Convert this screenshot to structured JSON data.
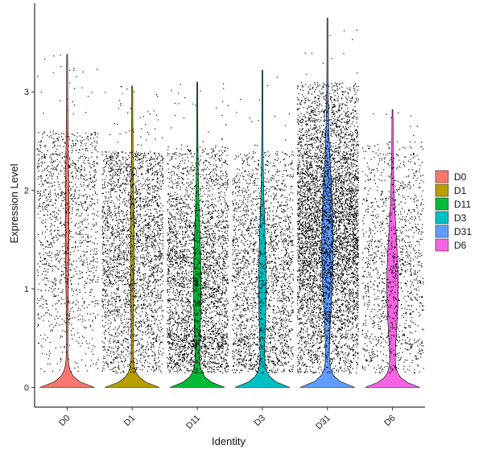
{
  "chart_data": {
    "type": "violin",
    "title": "",
    "xlabel": "Identity",
    "ylabel": "Expression Level",
    "ylim": [
      -0.2,
      3.9
    ],
    "yticks": [
      0,
      1,
      2,
      3
    ],
    "grid": false,
    "legend_position": "right",
    "categories": [
      "D0",
      "D1",
      "D11",
      "D3",
      "D31",
      "D6"
    ],
    "series": [
      {
        "name": "D0",
        "color": "#F8766D",
        "max": 3.38,
        "n_points": 1300,
        "points_upper_bound": 2.6,
        "points_center": 1.7
      },
      {
        "name": "D1",
        "color": "#B79F00",
        "max": 3.06,
        "n_points": 2600,
        "points_upper_bound": 2.4,
        "points_center": 1.4
      },
      {
        "name": "D11",
        "color": "#00BA38",
        "max": 3.1,
        "n_points": 3200,
        "points_upper_bound": 2.45,
        "points_center": 1.1
      },
      {
        "name": "D3",
        "color": "#00BFC4",
        "max": 3.22,
        "n_points": 2200,
        "points_upper_bound": 2.4,
        "points_center": 1.1
      },
      {
        "name": "D31",
        "color": "#619CFF",
        "max": 3.75,
        "n_points": 5600,
        "points_upper_bound": 3.1,
        "points_center": 1.6
      },
      {
        "name": "D6",
        "color": "#F564E3",
        "max": 2.82,
        "n_points": 1300,
        "points_upper_bound": 2.5,
        "points_center": 1.2
      }
    ]
  }
}
